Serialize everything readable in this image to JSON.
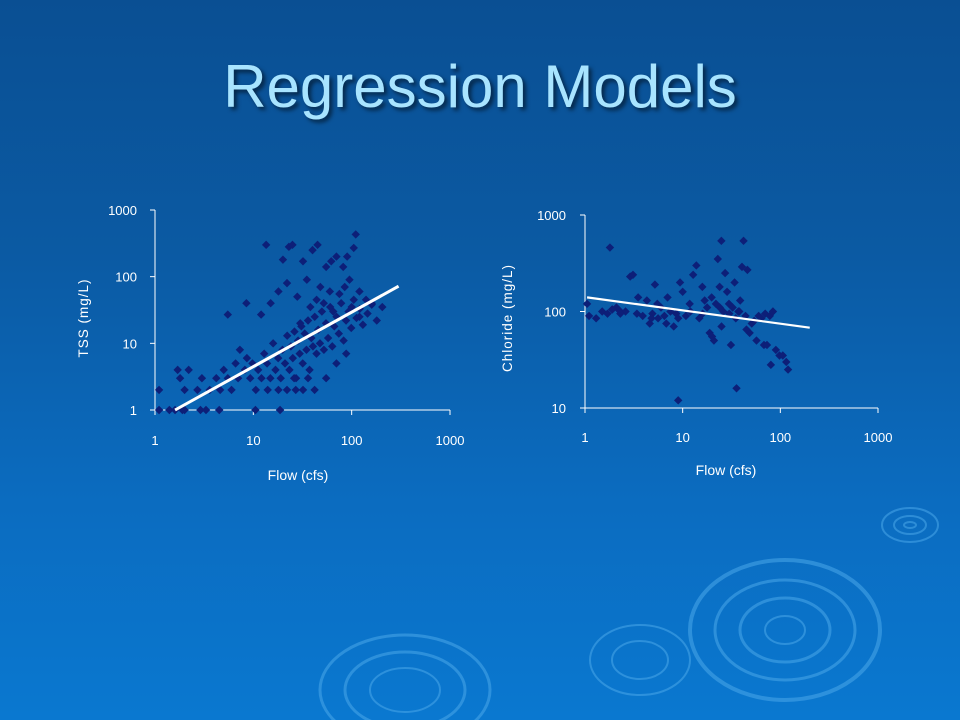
{
  "slide": {
    "title": "Regression Models"
  },
  "colors": {
    "marker": "#0d1f78",
    "fit_line": "#ffffff",
    "axis": "#ffffff",
    "title": "#a8e4ff"
  },
  "chart_data": [
    {
      "type": "scatter",
      "title": "",
      "xlabel": "Flow (cfs)",
      "ylabel": "TSS (mg/L)",
      "xscale": "log",
      "yscale": "log",
      "xlim": [
        1,
        1000
      ],
      "ylim": [
        1,
        1000
      ],
      "xticks": [
        "1",
        "10",
        "100",
        "1000"
      ],
      "yticks": [
        "1",
        "10",
        "100",
        "1000"
      ],
      "grid": false,
      "legend": "none",
      "marker": "diamond",
      "points": [
        [
          1.1,
          1
        ],
        [
          1.1,
          2
        ],
        [
          1.4,
          1
        ],
        [
          1.6,
          1
        ],
        [
          1.9,
          1
        ],
        [
          2.0,
          1
        ],
        [
          2.9,
          1
        ],
        [
          3.3,
          1
        ],
        [
          4.5,
          1
        ],
        [
          10.5,
          1
        ],
        [
          18.7,
          1
        ],
        [
          1.7,
          4
        ],
        [
          1.8,
          3
        ],
        [
          2.0,
          2
        ],
        [
          2.2,
          4
        ],
        [
          2.7,
          2
        ],
        [
          3.0,
          3
        ],
        [
          3.6,
          2
        ],
        [
          4.2,
          3
        ],
        [
          4.6,
          2
        ],
        [
          5.0,
          4
        ],
        [
          5.5,
          3
        ],
        [
          6.0,
          2
        ],
        [
          6.6,
          5
        ],
        [
          7.0,
          3
        ],
        [
          7.3,
          8
        ],
        [
          8.2,
          4
        ],
        [
          8.6,
          6
        ],
        [
          9.3,
          3
        ],
        [
          9.8,
          5
        ],
        [
          10.6,
          2
        ],
        [
          11.2,
          4
        ],
        [
          12.1,
          3
        ],
        [
          12.9,
          7
        ],
        [
          13.8,
          5
        ],
        [
          14.9,
          3
        ],
        [
          15.9,
          10
        ],
        [
          16.8,
          4
        ],
        [
          17.9,
          6
        ],
        [
          19.0,
          3
        ],
        [
          19.8,
          8
        ],
        [
          21.0,
          5
        ],
        [
          22.1,
          13
        ],
        [
          23.3,
          4
        ],
        [
          24.1,
          9
        ],
        [
          25.2,
          6
        ],
        [
          26.2,
          15
        ],
        [
          27.2,
          3
        ],
        [
          28.5,
          11
        ],
        [
          29.6,
          7
        ],
        [
          30.8,
          18
        ],
        [
          31.8,
          5
        ],
        [
          33.3,
          14
        ],
        [
          34.7,
          8
        ],
        [
          36.0,
          22
        ],
        [
          37.3,
          4
        ],
        [
          38.9,
          12
        ],
        [
          40.4,
          9
        ],
        [
          42.1,
          25
        ],
        [
          43.9,
          7
        ],
        [
          45.7,
          16
        ],
        [
          47.6,
          10
        ],
        [
          49.8,
          30
        ],
        [
          52.2,
          8
        ],
        [
          54.8,
          20
        ],
        [
          57.6,
          12
        ],
        [
          60.5,
          35
        ],
        [
          63.5,
          9
        ],
        [
          66.6,
          18
        ],
        [
          70.2,
          25
        ],
        [
          74.0,
          14
        ],
        [
          78.2,
          40
        ],
        [
          82.8,
          11
        ],
        [
          87.7,
          22
        ],
        [
          93.0,
          30
        ],
        [
          99.0,
          17
        ],
        [
          105,
          45
        ],
        [
          112,
          24
        ],
        [
          121,
          33
        ],
        [
          130,
          19
        ],
        [
          145,
          28
        ],
        [
          160,
          38
        ],
        [
          180,
          22
        ],
        [
          205,
          35
        ],
        [
          20,
          180
        ],
        [
          23,
          280
        ],
        [
          25,
          300
        ],
        [
          32,
          170
        ],
        [
          40,
          250
        ],
        [
          45,
          300
        ],
        [
          55,
          140
        ],
        [
          62,
          170
        ],
        [
          70,
          200
        ],
        [
          82,
          140
        ],
        [
          90,
          200
        ],
        [
          105,
          270
        ],
        [
          110,
          430
        ],
        [
          13.5,
          300
        ],
        [
          8.5,
          40
        ],
        [
          5.5,
          27
        ],
        [
          12,
          27
        ],
        [
          15,
          40
        ],
        [
          18,
          60
        ],
        [
          22,
          80
        ],
        [
          28,
          50
        ],
        [
          35,
          90
        ],
        [
          48,
          70
        ],
        [
          60,
          60
        ],
        [
          75,
          55
        ],
        [
          95,
          90
        ],
        [
          120,
          60
        ],
        [
          140,
          45
        ],
        [
          160,
          40
        ],
        [
          30,
          20
        ],
        [
          38,
          35
        ],
        [
          44,
          45
        ],
        [
          52,
          40
        ],
        [
          65,
          30
        ],
        [
          85,
          70
        ],
        [
          100,
          35
        ],
        [
          120,
          25
        ],
        [
          27,
          2
        ],
        [
          32,
          2
        ],
        [
          42,
          2
        ],
        [
          55,
          3
        ],
        [
          70,
          5
        ],
        [
          88,
          7
        ],
        [
          18,
          2
        ],
        [
          14,
          2
        ],
        [
          22,
          2
        ],
        [
          26,
          3
        ],
        [
          36,
          3
        ]
      ],
      "fit_line": [
        [
          1.6,
          1.0
        ],
        [
          300,
          72
        ]
      ]
    },
    {
      "type": "scatter",
      "title": "",
      "xlabel": "Flow (cfs)",
      "ylabel": "Chloride (mg/L)",
      "xscale": "log",
      "yscale": "log",
      "xlim": [
        1,
        1000
      ],
      "ylim": [
        10,
        1000
      ],
      "xticks": [
        "1",
        "10",
        "100",
        "1000"
      ],
      "yticks": [
        "10",
        "100",
        "1000"
      ],
      "grid": false,
      "legend": "none",
      "marker": "diamond",
      "points": [
        [
          1.05,
          120
        ],
        [
          1.1,
          90
        ],
        [
          1.3,
          85
        ],
        [
          1.5,
          100
        ],
        [
          1.7,
          95
        ],
        [
          1.8,
          460
        ],
        [
          1.9,
          105
        ],
        [
          2.1,
          110
        ],
        [
          2.3,
          100
        ],
        [
          2.9,
          230
        ],
        [
          3.1,
          240
        ],
        [
          3.4,
          95
        ],
        [
          3.9,
          90
        ],
        [
          4.3,
          130
        ],
        [
          4.6,
          75
        ],
        [
          4.9,
          95
        ],
        [
          5.2,
          190
        ],
        [
          5.6,
          85
        ],
        [
          6.0,
          110
        ],
        [
          6.5,
          90
        ],
        [
          7.0,
          140
        ],
        [
          7.5,
          100
        ],
        [
          8.1,
          70
        ],
        [
          8.6,
          95
        ],
        [
          9.0,
          12
        ],
        [
          9.4,
          200
        ],
        [
          10.0,
          160
        ],
        [
          10.8,
          90
        ],
        [
          11.8,
          120
        ],
        [
          12.8,
          240
        ],
        [
          13.8,
          300
        ],
        [
          14.8,
          85
        ],
        [
          15.9,
          180
        ],
        [
          16.8,
          130
        ],
        [
          17.8,
          110
        ],
        [
          18.9,
          60
        ],
        [
          19.8,
          140
        ],
        [
          20.9,
          50
        ],
        [
          21.9,
          120
        ],
        [
          22.9,
          350
        ],
        [
          23.9,
          180
        ],
        [
          24.9,
          540
        ],
        [
          26.0,
          100
        ],
        [
          27.2,
          250
        ],
        [
          28.5,
          160
        ],
        [
          29.8,
          120
        ],
        [
          31.2,
          45
        ],
        [
          32.5,
          110
        ],
        [
          34.0,
          200
        ],
        [
          35.6,
          16
        ],
        [
          37.2,
          100
        ],
        [
          38.8,
          130
        ],
        [
          40.5,
          290
        ],
        [
          42.0,
          540
        ],
        [
          44.0,
          90
        ],
        [
          46.0,
          270
        ],
        [
          48.5,
          60
        ],
        [
          51.0,
          75
        ],
        [
          54.0,
          80
        ],
        [
          57.0,
          50
        ],
        [
          60.0,
          90
        ],
        [
          64.0,
          85
        ],
        [
          68.0,
          45
        ],
        [
          73.0,
          45
        ],
        [
          78.0,
          90
        ],
        [
          84.0,
          100
        ],
        [
          90.0,
          40
        ],
        [
          98.0,
          35
        ],
        [
          106,
          35
        ],
        [
          115,
          30
        ],
        [
          120,
          25
        ],
        [
          80,
          28
        ],
        [
          70,
          95
        ],
        [
          45,
          65
        ],
        [
          35,
          85
        ],
        [
          25,
          70
        ],
        [
          20,
          55
        ],
        [
          16,
          95
        ],
        [
          12,
          100
        ],
        [
          9,
          85
        ],
        [
          6.8,
          75
        ],
        [
          5.5,
          120
        ],
        [
          4.8,
          85
        ],
        [
          3.5,
          140
        ],
        [
          2.6,
          100
        ],
        [
          2.3,
          95
        ],
        [
          1.9,
          105
        ],
        [
          24,
          110
        ],
        [
          30,
          95
        ],
        [
          38,
          100
        ]
      ],
      "fit_line": [
        [
          1.05,
          140
        ],
        [
          200,
          68
        ]
      ]
    }
  ]
}
